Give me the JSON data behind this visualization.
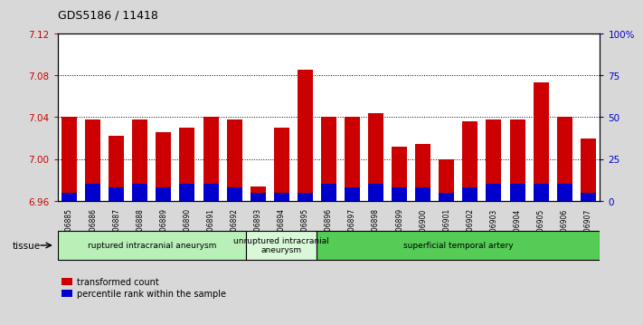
{
  "title": "GDS5186 / 11418",
  "samples": [
    "GSM1306885",
    "GSM1306886",
    "GSM1306887",
    "GSM1306888",
    "GSM1306889",
    "GSM1306890",
    "GSM1306891",
    "GSM1306892",
    "GSM1306893",
    "GSM1306894",
    "GSM1306895",
    "GSM1306896",
    "GSM1306897",
    "GSM1306898",
    "GSM1306899",
    "GSM1306900",
    "GSM1306901",
    "GSM1306902",
    "GSM1306903",
    "GSM1306904",
    "GSM1306905",
    "GSM1306906",
    "GSM1306907"
  ],
  "transformed_count": [
    7.04,
    7.038,
    7.022,
    7.038,
    7.026,
    7.03,
    7.04,
    7.038,
    6.974,
    7.03,
    7.085,
    7.04,
    7.04,
    7.044,
    7.012,
    7.014,
    7.0,
    7.036,
    7.038,
    7.038,
    7.073,
    7.04,
    7.02
  ],
  "percentile_rank": [
    5,
    10,
    8,
    10,
    8,
    10,
    10,
    8,
    5,
    5,
    5,
    10,
    8,
    10,
    8,
    8,
    5,
    8,
    10,
    10,
    10,
    10,
    5
  ],
  "ylim_left": [
    6.96,
    7.12
  ],
  "ylim_right": [
    0,
    100
  ],
  "yticks_left": [
    6.96,
    7.0,
    7.04,
    7.08,
    7.12
  ],
  "yticks_right": [
    0,
    25,
    50,
    75,
    100
  ],
  "ytick_labels_right": [
    "0",
    "25",
    "50",
    "75",
    "100%"
  ],
  "groups": [
    {
      "label": "ruptured intracranial aneurysm",
      "start": 0,
      "end": 8,
      "color": "#b8f0b8"
    },
    {
      "label": "unruptured intracranial\naneurysm",
      "start": 8,
      "end": 11,
      "color": "#d8f8d8"
    },
    {
      "label": "superficial temporal artery",
      "start": 11,
      "end": 23,
      "color": "#55cc55"
    }
  ],
  "bar_color": "#cc0000",
  "blue_color": "#0000cc",
  "base_value": 6.96,
  "tissue_label": "tissue",
  "legend_red": "transformed count",
  "legend_blue": "percentile rank within the sample",
  "background_color": "#d8d8d8",
  "plot_bg_color": "#ffffff",
  "left_axis_color": "#cc0000",
  "right_axis_color": "#0000cc"
}
